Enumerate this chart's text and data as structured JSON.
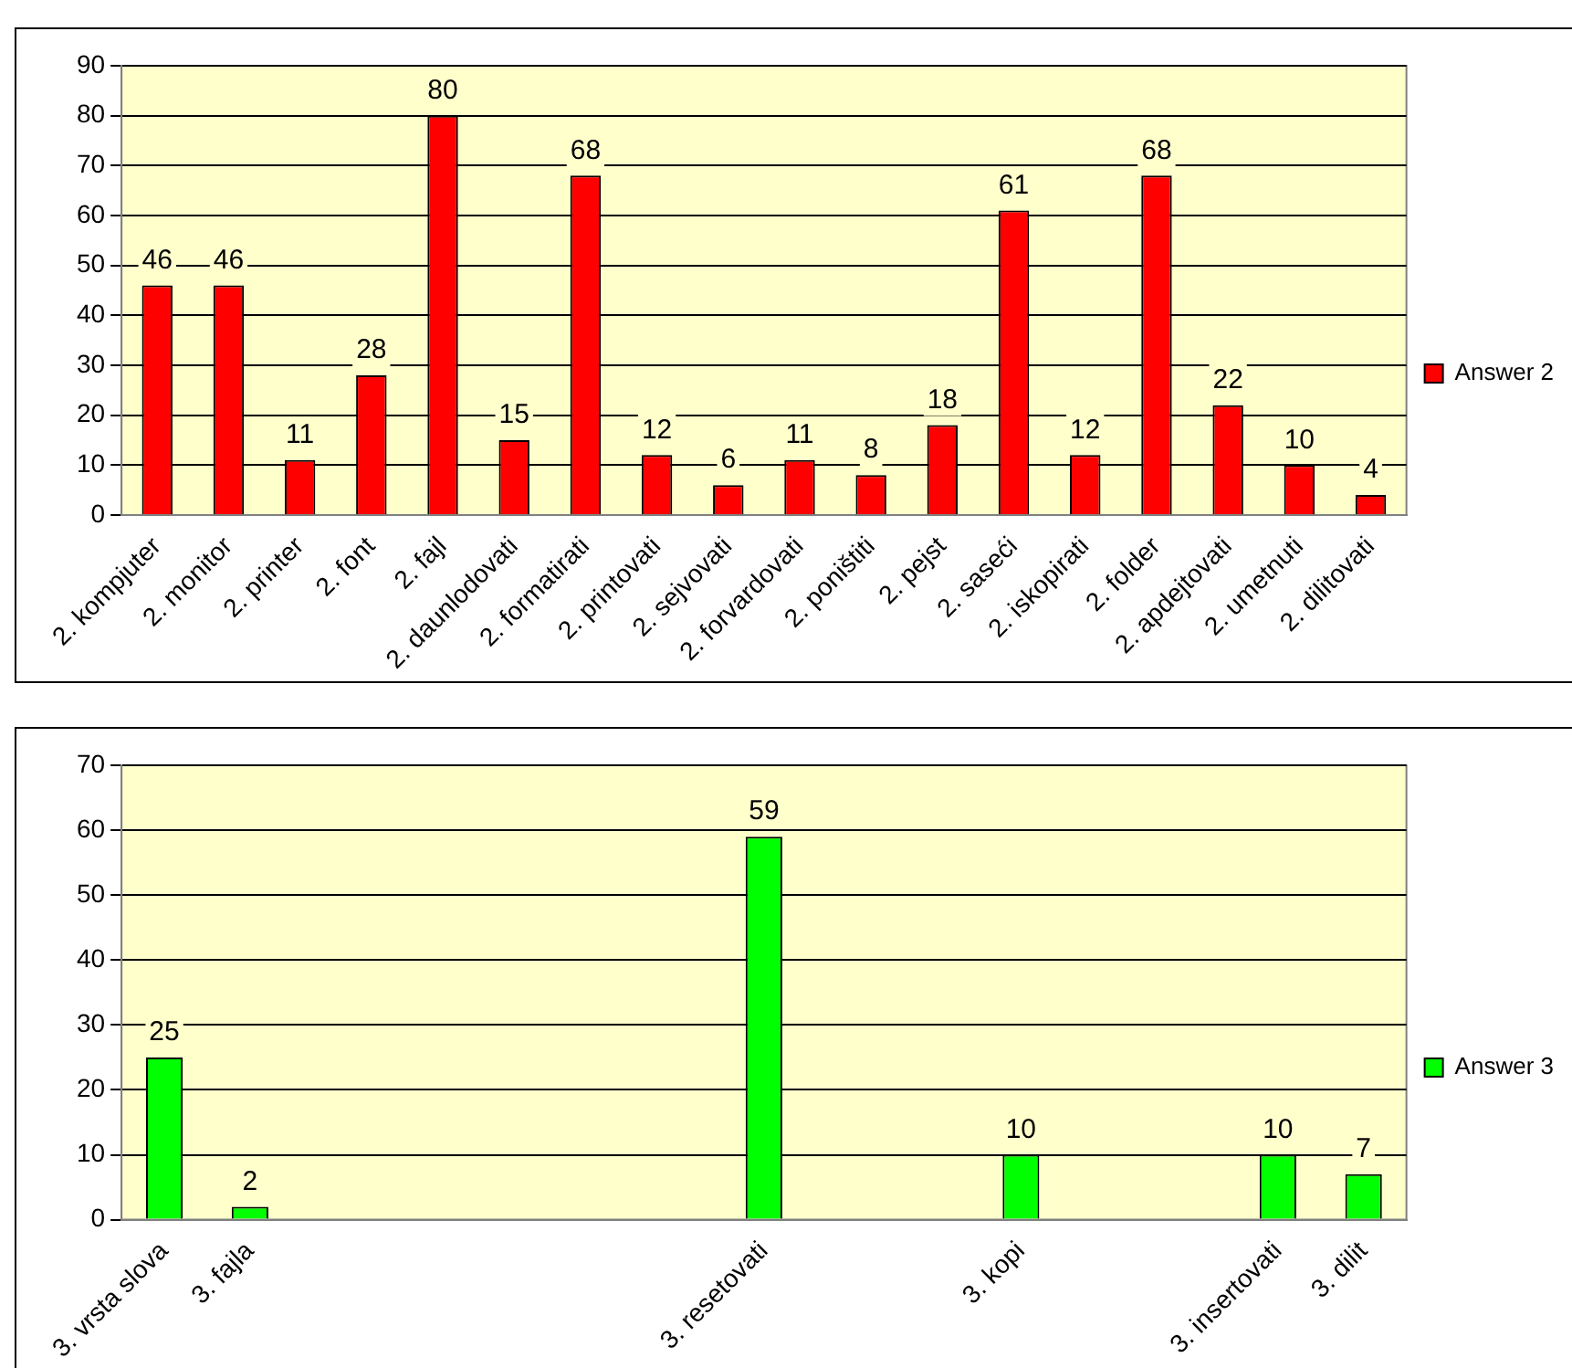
{
  "chart_data": [
    {
      "type": "bar",
      "categories": [
        "2. kompjuter",
        "2. monitor",
        "2. printer",
        "2. font",
        "2. fajl",
        "2. daunlodovati",
        "2. formatirati",
        "2. printovati",
        "2. sejvovati",
        "2. forvardovati",
        "2. poništiti",
        "2. pejst",
        "2. saseći",
        "2. iskopirati",
        "2. folder",
        "2. apdejtovati",
        "2. umetnuti",
        "2. dilitovati"
      ],
      "series": [
        {
          "name": "Answer 2",
          "color": "#ff0000",
          "values": [
            46,
            46,
            11,
            28,
            80,
            15,
            68,
            12,
            6,
            11,
            8,
            18,
            61,
            12,
            68,
            22,
            10,
            4
          ]
        }
      ],
      "ylim": [
        0,
        90
      ],
      "yticks": [
        0,
        10,
        20,
        30,
        40,
        50,
        60,
        70,
        80,
        90
      ],
      "grid": "y",
      "legend": "right",
      "data_labels": true
    },
    {
      "type": "bar",
      "categories": [
        "3. vrsta slova",
        "3. fajla",
        null,
        null,
        null,
        null,
        null,
        "3. resetovati",
        null,
        null,
        "3. kopi",
        null,
        null,
        "3. insertovati",
        "3. dilit"
      ],
      "series": [
        {
          "name": "Answer 3",
          "color": "#00ff00",
          "values": [
            25,
            2,
            null,
            null,
            null,
            null,
            null,
            59,
            null,
            null,
            10,
            null,
            null,
            10,
            7
          ]
        }
      ],
      "ylim": [
        0,
        70
      ],
      "yticks": [
        0,
        10,
        20,
        30,
        40,
        50,
        60,
        70
      ],
      "grid": "y",
      "legend": "right",
      "data_labels": true
    }
  ]
}
